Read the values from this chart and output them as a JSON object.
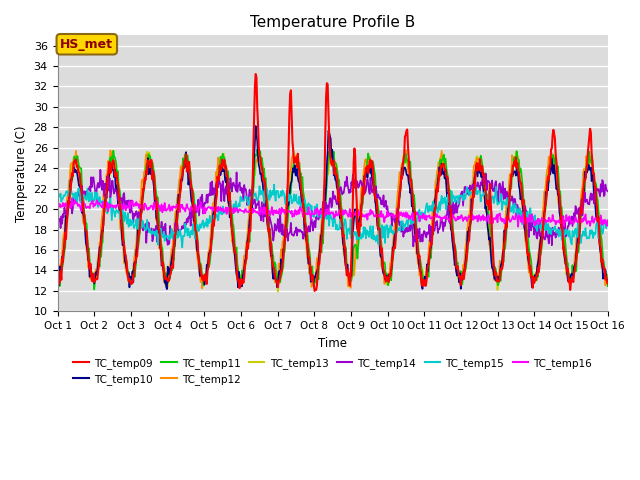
{
  "title": "Temperature Profile B",
  "xlabel": "Time",
  "ylabel": "Temperature (C)",
  "ylim": [
    10,
    37
  ],
  "yticks": [
    10,
    12,
    14,
    16,
    18,
    20,
    22,
    24,
    26,
    28,
    30,
    32,
    34,
    36
  ],
  "annotation": "HS_met",
  "annotation_color": "#8B0000",
  "annotation_bg": "#FFD700",
  "annotation_edge": "#8B6914",
  "bg_color": "#DCDCDC",
  "series_colors": {
    "TC_temp09": "#FF0000",
    "TC_temp10": "#00008B",
    "TC_temp11": "#00CC00",
    "TC_temp12": "#FF8C00",
    "TC_temp13": "#CCCC00",
    "TC_temp14": "#9900CC",
    "TC_temp15": "#00CCCC",
    "TC_temp16": "#FF00FF"
  },
  "x_labels": [
    "Oct 1",
    "Oct 2",
    "Oct 3",
    "Oct 4",
    "Oct 5",
    "Oct 6",
    "Oct 7",
    "Oct 8",
    "Oct 9",
    "Oct 10",
    "Oct 11",
    "Oct 12",
    "Oct 13",
    "Oct 14",
    "Oct 15",
    "Oct 16"
  ],
  "n_points": 720,
  "n_days": 15
}
